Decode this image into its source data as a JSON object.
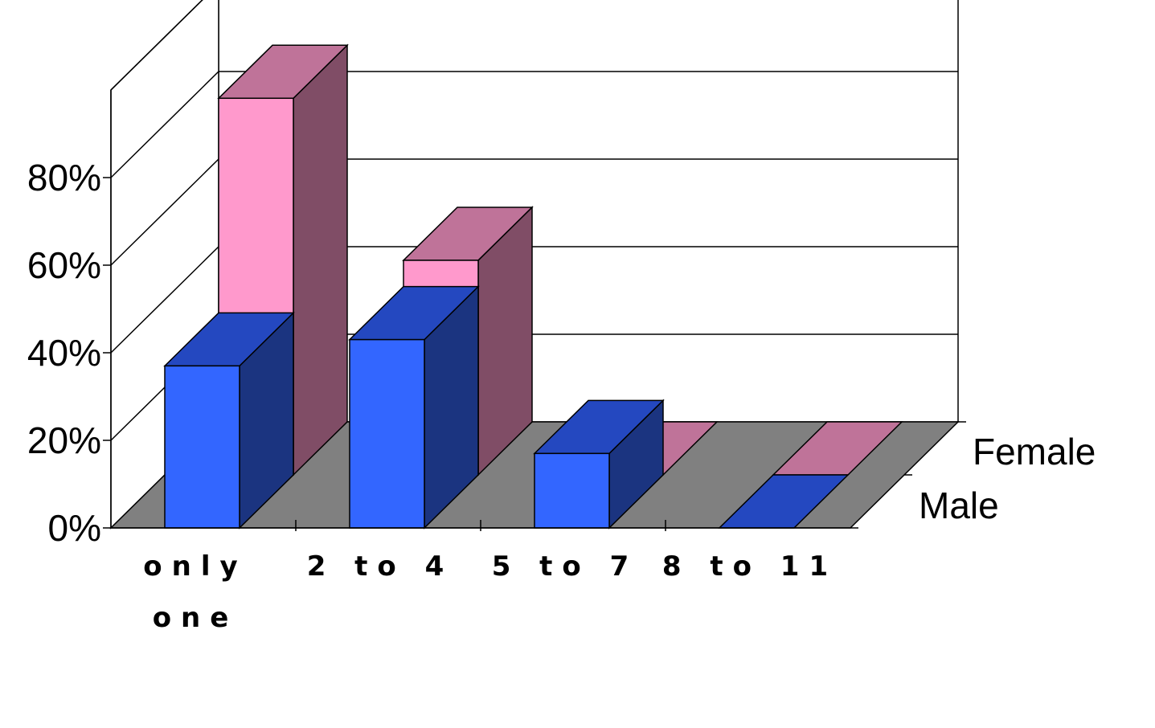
{
  "chart_data": {
    "type": "bar",
    "categories": [
      "only one",
      "2 to 4",
      "5 to 7",
      "8 to 11"
    ],
    "category_lines": [
      [
        "only",
        "one"
      ],
      [
        "2 to 4"
      ],
      [
        "5 to 7"
      ],
      [
        "8 to 11"
      ]
    ],
    "series": [
      {
        "name": "Male",
        "values": [
          37,
          43,
          17,
          0
        ]
      },
      {
        "name": "Female",
        "values": [
          86,
          49,
          0,
          0
        ]
      }
    ],
    "yticks": [
      "0%",
      "20%",
      "40%",
      "60%",
      "80%"
    ],
    "ylim": [
      0,
      100
    ],
    "grid": true,
    "colors": {
      "male_front": "#3366FF",
      "male_top": "#2448C0",
      "male_side": "#1B3480",
      "female_front": "#FF99CC",
      "female_top": "#BF7399",
      "female_side": "#804D66",
      "floor": "#808080"
    }
  }
}
